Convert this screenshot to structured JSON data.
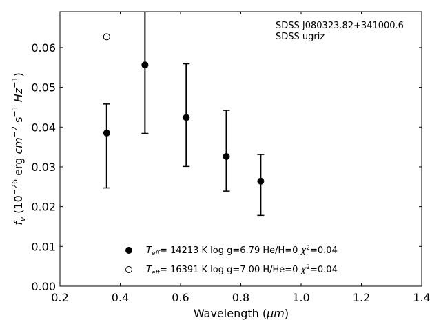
{
  "chart_data": {
    "type": "scatter",
    "annotations": [
      "SDSS J080323.82+341000.6",
      "SDSS ugriz"
    ],
    "xlabel": {
      "main": "Wavelength (",
      "unit": "μm",
      "end": ")"
    },
    "ylabel": {
      "f": "f",
      "sub": "ν",
      "a": " (10",
      "exp1": "−26",
      "b": " erg ",
      "cm": "cm",
      "exp2": "−2",
      "s": " s",
      "exp3": "−1",
      "hz": " Hz",
      "exp4": "−1",
      "c": ")"
    },
    "xlim": [
      0.2,
      1.4
    ],
    "ylim": [
      0.0,
      0.069
    ],
    "xticks": [
      0.2,
      0.4,
      0.6,
      0.8,
      1.0,
      1.2,
      1.4
    ],
    "xtick_labels": [
      "0.2",
      "0.4",
      "0.6",
      "0.8",
      "1.0",
      "1.2",
      "1.4"
    ],
    "yticks": [
      0.0,
      0.01,
      0.02,
      0.03,
      0.04,
      0.05,
      0.06
    ],
    "ytick_labels": [
      "0.00",
      "0.01",
      "0.02",
      "0.03",
      "0.04",
      "0.05",
      "0.06"
    ],
    "grid": false,
    "legend_position": "bottom-center",
    "series": [
      {
        "marker": "filled-circle",
        "color": "#000000",
        "points": [
          {
            "x": 0.355,
            "y": 0.0385,
            "ylow": 0.0247,
            "yhigh": 0.0458
          },
          {
            "x": 0.482,
            "y": 0.0556,
            "ylow": 0.0384,
            "yhigh": 0.07
          },
          {
            "x": 0.619,
            "y": 0.0424,
            "ylow": 0.0301,
            "yhigh": 0.0559
          },
          {
            "x": 0.752,
            "y": 0.0326,
            "ylow": 0.0239,
            "yhigh": 0.0442
          },
          {
            "x": 0.866,
            "y": 0.0264,
            "ylow": 0.0178,
            "yhigh": 0.0331
          }
        ]
      },
      {
        "marker": "open-circle",
        "color": "#000000",
        "points": [
          {
            "x": 0.355,
            "y": 0.0627
          }
        ]
      }
    ],
    "legend": [
      {
        "marker": "filled-circle",
        "t": "T",
        "eff": "eff",
        "text": "= 14213 K  log g=6.79  He/H=0  ",
        "chi": "χ",
        "two": "2",
        "val": "=0.04"
      },
      {
        "marker": "open-circle",
        "t": "T",
        "eff": "eff",
        "text": "= 16391 K  log g=7.00  H/He=0  ",
        "chi": "χ",
        "two": "2",
        "val": "=0.04"
      }
    ]
  }
}
